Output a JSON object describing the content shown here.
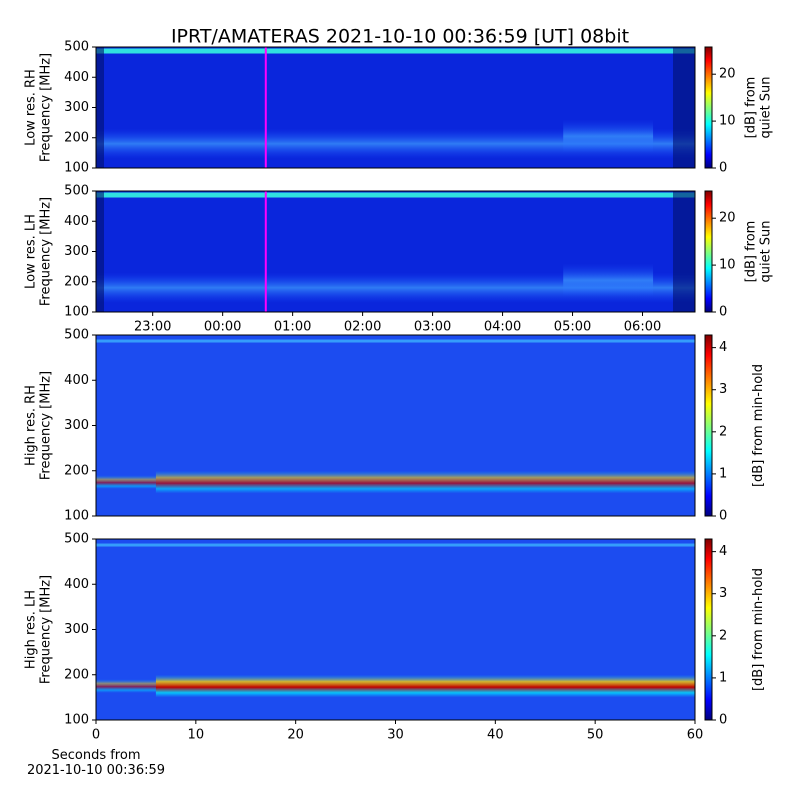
{
  "title": "IPRT/AMATERAS 2021-10-10 00:36:59 [UT]   08bit",
  "chart_data": [
    {
      "type": "heatmap",
      "ylabel": [
        "Low res. RH",
        "Frequency [MHz]"
      ],
      "ylim": [
        100,
        500
      ],
      "yticks": [
        100,
        200,
        300,
        400,
        500
      ],
      "xlim": [
        22.19,
        30.75
      ],
      "vline": {
        "x": 24.6164,
        "color": "#ff00ff"
      },
      "colorbar": {
        "label": [
          "[dB] from",
          "quiet Sun"
        ],
        "lim": [
          0,
          25.8
        ],
        "ticks": [
          0,
          10,
          20
        ],
        "colormap": "jet"
      }
    },
    {
      "type": "heatmap",
      "ylabel": [
        "Low res. LH",
        "Frequency [MHz]"
      ],
      "ylim": [
        100,
        500
      ],
      "yticks": [
        100,
        200,
        300,
        400,
        500
      ],
      "xlim": [
        22.19,
        30.75
      ],
      "xticks": [
        {
          "value": 23,
          "label": "23:00"
        },
        {
          "value": 24,
          "label": "00:00"
        },
        {
          "value": 25,
          "label": "01:00"
        },
        {
          "value": 26,
          "label": "02:00"
        },
        {
          "value": 27,
          "label": "03:00"
        },
        {
          "value": 28,
          "label": "04:00"
        },
        {
          "value": 29,
          "label": "05:00"
        },
        {
          "value": 30,
          "label": "06:00"
        }
      ],
      "vline": {
        "x": 24.6164,
        "color": "#ff00ff"
      },
      "colorbar": {
        "label": [
          "[dB] from",
          "quiet Sun"
        ],
        "lim": [
          0,
          25.8
        ],
        "ticks": [
          0,
          10,
          20
        ],
        "colormap": "jet"
      }
    },
    {
      "type": "heatmap",
      "ylabel": [
        "High res. RH",
        "Frequency [MHz]"
      ],
      "ylim": [
        100,
        500
      ],
      "yticks": [
        100,
        200,
        300,
        400,
        500
      ],
      "xlim": [
        0,
        60
      ],
      "colorbar": {
        "label": [
          "[dB] from min-hold"
        ],
        "lim": [
          0,
          4.3
        ],
        "ticks": [
          0,
          1,
          2,
          3,
          4
        ],
        "colormap": "jet"
      }
    },
    {
      "type": "heatmap",
      "ylabel": [
        "High res. LH",
        "Frequency [MHz]"
      ],
      "ylim": [
        100,
        500
      ],
      "yticks": [
        100,
        200,
        300,
        400,
        500
      ],
      "xlim": [
        0,
        60
      ],
      "xticks": [
        0,
        10,
        20,
        30,
        40,
        50,
        60
      ],
      "xlabel": [
        "Seconds from",
        "2021-10-10 00:36:59"
      ],
      "colorbar": {
        "label": [
          "[dB] from min-hold"
        ],
        "lim": [
          0,
          4.3
        ],
        "ticks": [
          0,
          1,
          2,
          3,
          4
        ],
        "colormap": "jet"
      }
    }
  ]
}
